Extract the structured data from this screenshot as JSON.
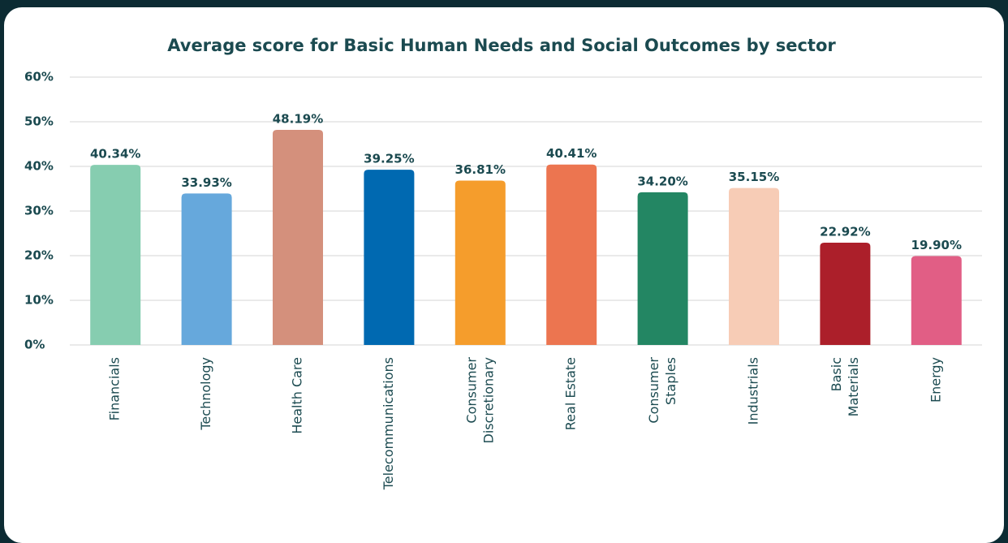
{
  "chart_data": {
    "type": "bar",
    "title": "Average score for Basic Human Needs and Social Outcomes by sector",
    "categories": [
      "Financials",
      "Technology",
      "Health Care",
      "Telecommunications",
      "Consumer Discretionary",
      "Real Estate",
      "Consumer Staples",
      "Industrials",
      "Basic Materials",
      "Energy"
    ],
    "values": [
      40.34,
      33.93,
      48.19,
      39.25,
      36.81,
      40.41,
      34.2,
      35.15,
      22.92,
      19.9
    ],
    "value_labels": [
      "40.34%",
      "33.93%",
      "48.19%",
      "39.25%",
      "36.81%",
      "40.41%",
      "34.20%",
      "35.15%",
      "22.92%",
      "19.90%"
    ],
    "colors": [
      "#86cdb0",
      "#66a8dc",
      "#d4907c",
      "#0069b1",
      "#f59d2c",
      "#ec7550",
      "#238663",
      "#f7ccb6",
      "#ac1f2a",
      "#e15e85"
    ],
    "ylim": [
      0,
      60
    ],
    "yticks": [
      {
        "value": 0,
        "label": "0%"
      },
      {
        "value": 10,
        "label": "10%"
      },
      {
        "value": 20,
        "label": "20%"
      },
      {
        "value": 30,
        "label": "30%"
      },
      {
        "value": 40,
        "label": "40%"
      },
      {
        "value": 50,
        "label": "50%"
      },
      {
        "value": 60,
        "label": "60%"
      }
    ],
    "grid": true
  }
}
